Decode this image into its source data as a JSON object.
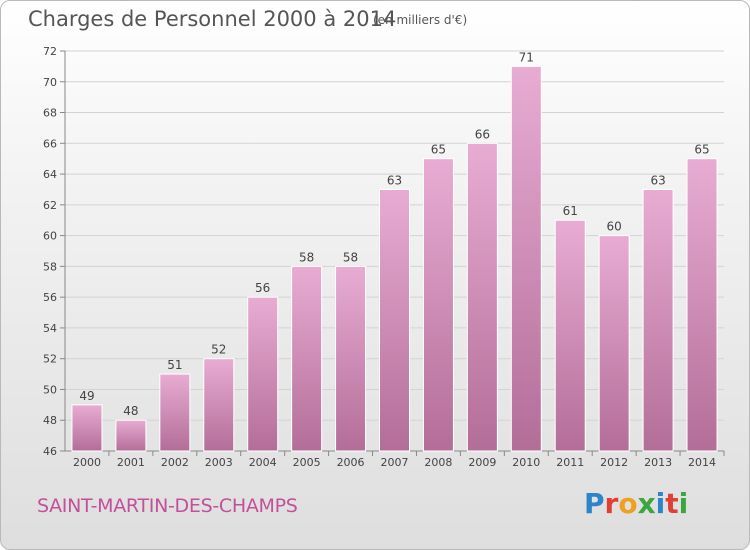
{
  "title": "Charges de Personnel 2000 à 2014",
  "unit_note": "(en milliers d'€)",
  "commune": "SAINT-MARTIN-DES-CHAMPS",
  "logo": {
    "letters": [
      "P",
      "r",
      "o",
      "x",
      "i",
      "t",
      "i"
    ],
    "colors": [
      "#2e84c8",
      "#e03f34",
      "#f0a020",
      "#3aa640",
      "#2e84c8",
      "#e03f34",
      "#3aa640"
    ]
  },
  "colors": {
    "bar_top": "#e8acd3",
    "bar_bottom": "#b36e98",
    "grid": "#d3d3d3",
    "axis": "#888888"
  },
  "chart_data": {
    "type": "bar",
    "categories": [
      "2000",
      "2001",
      "2002",
      "2003",
      "2004",
      "2005",
      "2006",
      "2007",
      "2008",
      "2009",
      "2010",
      "2011",
      "2012",
      "2013",
      "2014"
    ],
    "values": [
      49,
      48,
      51,
      52,
      56,
      58,
      58,
      63,
      65,
      66,
      71,
      61,
      60,
      63,
      65
    ],
    "data_labels": [
      "49",
      "48",
      "51",
      "52",
      "56",
      "58",
      "58",
      "63",
      "65",
      "66",
      "71",
      "61",
      "60",
      "63",
      "65"
    ],
    "title": "Charges de Personnel 2000 à 2014",
    "xlabel": "",
    "ylabel": "",
    "ylim": [
      46,
      72
    ],
    "yticks": [
      "46",
      "48",
      "50",
      "52",
      "54",
      "56",
      "58",
      "60",
      "62",
      "64",
      "66",
      "68",
      "70",
      "72"
    ],
    "grid": true
  }
}
